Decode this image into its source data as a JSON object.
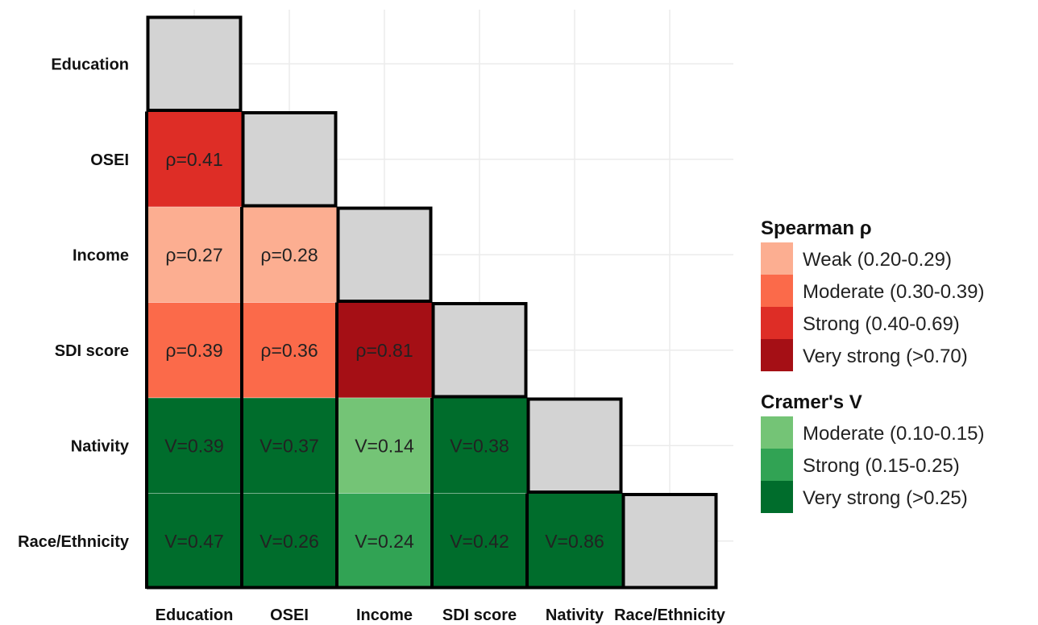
{
  "chart_data": {
    "type": "heatmap",
    "variables": [
      "Education",
      "OSEI",
      "Income",
      "SDI score",
      "Nativity",
      "Race/Ethnicity"
    ],
    "diagonal_color": "#d3d3d3",
    "grid": true,
    "legend_position": "right",
    "cells": [
      {
        "row": "OSEI",
        "col": "Education",
        "label": "ρ=0.41",
        "category": "spearman-strong"
      },
      {
        "row": "Income",
        "col": "Education",
        "label": "ρ=0.27",
        "category": "spearman-weak"
      },
      {
        "row": "Income",
        "col": "OSEI",
        "label": "ρ=0.28",
        "category": "spearman-weak"
      },
      {
        "row": "SDI score",
        "col": "Education",
        "label": "ρ=0.39",
        "category": "spearman-moderate"
      },
      {
        "row": "SDI score",
        "col": "OSEI",
        "label": "ρ=0.36",
        "category": "spearman-moderate"
      },
      {
        "row": "SDI score",
        "col": "Income",
        "label": "ρ=0.81",
        "category": "spearman-very-strong"
      },
      {
        "row": "Nativity",
        "col": "Education",
        "label": "V=0.39",
        "category": "cramer-very-strong"
      },
      {
        "row": "Nativity",
        "col": "OSEI",
        "label": "V=0.37",
        "category": "cramer-very-strong"
      },
      {
        "row": "Nativity",
        "col": "Income",
        "label": "V=0.14",
        "category": "cramer-moderate"
      },
      {
        "row": "Nativity",
        "col": "SDI score",
        "label": "V=0.38",
        "category": "cramer-very-strong"
      },
      {
        "row": "Race/Ethnicity",
        "col": "Education",
        "label": "V=0.47",
        "category": "cramer-very-strong"
      },
      {
        "row": "Race/Ethnicity",
        "col": "OSEI",
        "label": "V=0.26",
        "category": "cramer-very-strong"
      },
      {
        "row": "Race/Ethnicity",
        "col": "Income",
        "label": "V=0.24",
        "category": "cramer-strong"
      },
      {
        "row": "Race/Ethnicity",
        "col": "SDI score",
        "label": "V=0.42",
        "category": "cramer-very-strong"
      },
      {
        "row": "Race/Ethnicity",
        "col": "Nativity",
        "label": "V=0.86",
        "category": "cramer-very-strong"
      }
    ],
    "legends": [
      {
        "title": "Spearman ρ",
        "items": [
          {
            "key": "spearman-weak",
            "label": "Weak (0.20-0.29)",
            "color": "#fcae91"
          },
          {
            "key": "spearman-moderate",
            "label": "Moderate (0.30-0.39)",
            "color": "#fb6a4a"
          },
          {
            "key": "spearman-strong",
            "label": "Strong (0.40-0.69)",
            "color": "#de2d26"
          },
          {
            "key": "spearman-very-strong",
            "label": "Very strong (>0.70)",
            "color": "#a50f15"
          }
        ]
      },
      {
        "title": "Cramer's V",
        "items": [
          {
            "key": "cramer-moderate",
            "label": "Moderate (0.10-0.15)",
            "color": "#74c476"
          },
          {
            "key": "cramer-strong",
            "label": "Strong (0.15-0.25)",
            "color": "#31a354"
          },
          {
            "key": "cramer-very-strong",
            "label": "Very strong (>0.25)",
            "color": "#006d2c"
          }
        ]
      }
    ]
  }
}
